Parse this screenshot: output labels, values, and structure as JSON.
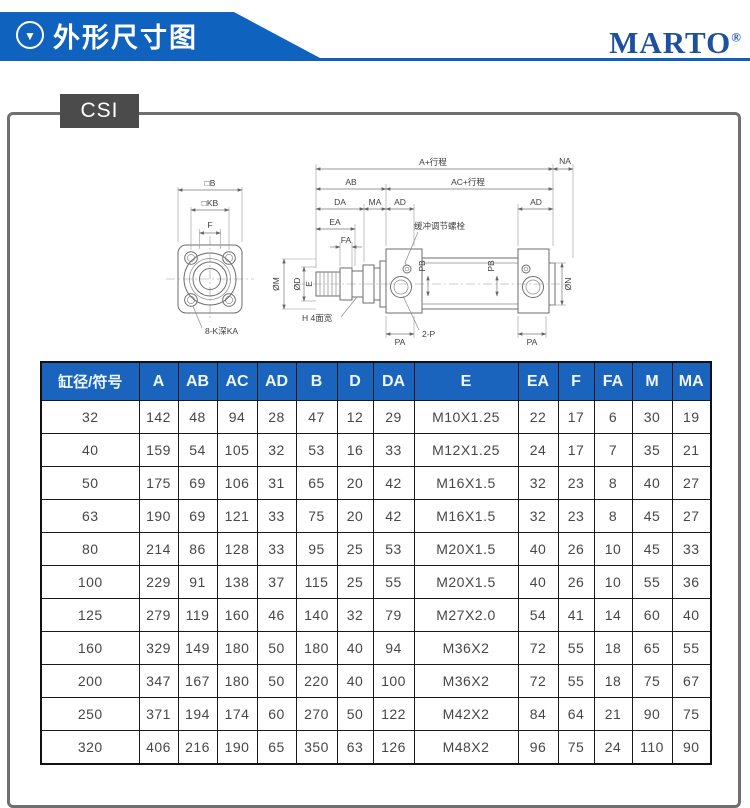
{
  "header": {
    "title": "外形尺寸图",
    "brand": "MARTO",
    "brand_mark": "®",
    "icon": "down-triangle-in-circle"
  },
  "model_badge": "CSI",
  "colors": {
    "banner_blue": "#0f62bd",
    "brand_blue": "#1d509e",
    "table_header_blue": "#1b64bd",
    "badge_gray": "#4b4b4b"
  },
  "drawing": {
    "front_view": {
      "dim_square_b": "□B",
      "dim_square_kb": "□KB",
      "dim_f": "F",
      "holes_note": "8-K深KA"
    },
    "side_view": {
      "dim_a_stroke": "A+行程",
      "dim_na": "NA",
      "dim_ab": "AB",
      "dim_ac_stroke": "AC+行程",
      "dim_da": "DA",
      "dim_ma": "MA",
      "dim_ad": "AD",
      "dim_ea": "EA",
      "dim_fa": "FA",
      "cushion_note": "缓冲调节螺栓",
      "dim_m": "ØM",
      "dim_d": "ØD",
      "dim_e": "E",
      "rod_flats_note": "H 4面宽",
      "dim_pb": "PB",
      "dim_n": "ØN",
      "dim_pa": "PA",
      "ports_note": "2-P"
    }
  },
  "table": {
    "columns": [
      "缸径/符号",
      "A",
      "AB",
      "AC",
      "AD",
      "B",
      "D",
      "DA",
      "E",
      "EA",
      "F",
      "FA",
      "M",
      "MA"
    ],
    "rows": [
      [
        "32",
        "142",
        "48",
        "94",
        "28",
        "47",
        "12",
        "29",
        "M10X1.25",
        "22",
        "17",
        "6",
        "30",
        "19"
      ],
      [
        "40",
        "159",
        "54",
        "105",
        "32",
        "53",
        "16",
        "33",
        "M12X1.25",
        "24",
        "17",
        "7",
        "35",
        "21"
      ],
      [
        "50",
        "175",
        "69",
        "106",
        "31",
        "65",
        "20",
        "42",
        "M16X1.5",
        "32",
        "23",
        "8",
        "40",
        "27"
      ],
      [
        "63",
        "190",
        "69",
        "121",
        "33",
        "75",
        "20",
        "42",
        "M16X1.5",
        "32",
        "23",
        "8",
        "45",
        "27"
      ],
      [
        "80",
        "214",
        "86",
        "128",
        "33",
        "95",
        "25",
        "53",
        "M20X1.5",
        "40",
        "26",
        "10",
        "45",
        "33"
      ],
      [
        "100",
        "229",
        "91",
        "138",
        "37",
        "115",
        "25",
        "55",
        "M20X1.5",
        "40",
        "26",
        "10",
        "55",
        "36"
      ],
      [
        "125",
        "279",
        "119",
        "160",
        "46",
        "140",
        "32",
        "79",
        "M27X2.0",
        "54",
        "41",
        "14",
        "60",
        "40"
      ],
      [
        "160",
        "329",
        "149",
        "180",
        "50",
        "180",
        "40",
        "94",
        "M36X2",
        "72",
        "55",
        "18",
        "65",
        "55"
      ],
      [
        "200",
        "347",
        "167",
        "180",
        "50",
        "220",
        "40",
        "100",
        "M36X2",
        "72",
        "55",
        "18",
        "75",
        "67"
      ],
      [
        "250",
        "371",
        "194",
        "174",
        "60",
        "270",
        "50",
        "122",
        "M42X2",
        "84",
        "64",
        "21",
        "90",
        "75"
      ],
      [
        "320",
        "406",
        "216",
        "190",
        "65",
        "350",
        "63",
        "126",
        "M48X2",
        "96",
        "75",
        "24",
        "110",
        "90"
      ]
    ]
  }
}
